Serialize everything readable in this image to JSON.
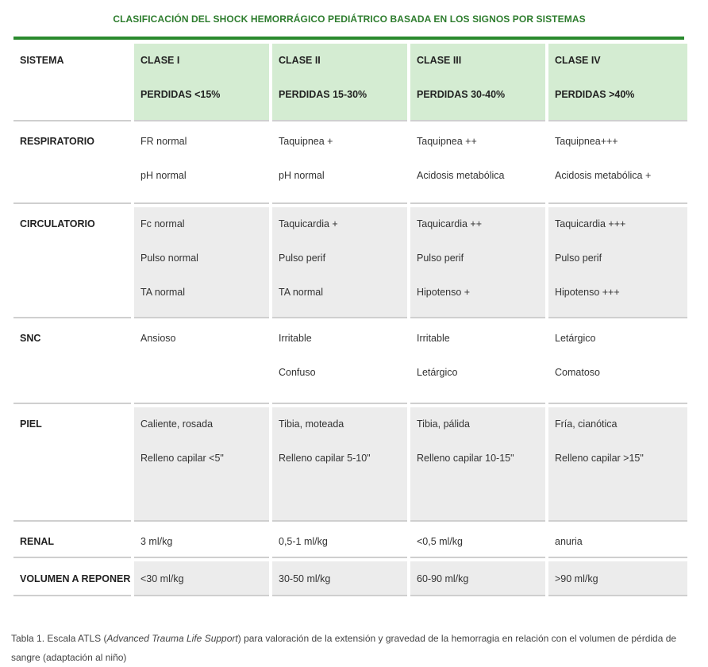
{
  "title": "CLASIFICACIÓN DEL SHOCK HEMORRÁGICO PEDIÁTRICO BASADA EN LOS SIGNOS POR SISTEMAS",
  "header": {
    "sistema": "SISTEMA",
    "classes": [
      {
        "name": "CLASE I",
        "loss": "PERDIDAS <15%"
      },
      {
        "name": "CLASE II",
        "loss": "PERDIDAS 15-30%"
      },
      {
        "name": "CLASE III",
        "loss": "PERDIDAS 30-40%"
      },
      {
        "name": "CLASE IV",
        "loss": "PERDIDAS >40%"
      }
    ]
  },
  "rows": [
    {
      "system": "RESPIRATORIO",
      "cells": [
        [
          "FR normal",
          "pH normal"
        ],
        [
          "Taquipnea +",
          "pH normal"
        ],
        [
          "Taquipnea ++",
          "Acidosis metabólica"
        ],
        [
          "Taquipnea+++",
          "Acidosis metabólica +"
        ]
      ]
    },
    {
      "system": "CIRCULATORIO",
      "cells": [
        [
          "Fc normal",
          "Pulso normal",
          "TA normal"
        ],
        [
          "Taquicardia +",
          "Pulso perif",
          "TA normal"
        ],
        [
          "Taquicardia ++",
          "Pulso perif",
          "Hipotenso +"
        ],
        [
          "Taquicardia +++",
          "Pulso perif",
          "Hipotenso +++"
        ]
      ]
    },
    {
      "system": "SNC",
      "cells": [
        [
          "Ansioso"
        ],
        [
          "Irritable",
          "Confuso"
        ],
        [
          "Irritable",
          "Letárgico"
        ],
        [
          "Letárgico",
          "Comatoso"
        ]
      ]
    },
    {
      "system": "PIEL",
      "cells": [
        [
          "Caliente, rosada",
          "Relleno capilar <5\""
        ],
        [
          "Tibia, moteada",
          "Relleno capilar 5-10\""
        ],
        [
          "Tibia, pálida",
          "Relleno capilar 10-15\""
        ],
        [
          "Fría, cianótica",
          "Relleno capilar >15\""
        ]
      ]
    },
    {
      "system": "RENAL",
      "cells": [
        [
          "3 ml/kg"
        ],
        [
          "0,5-1 ml/kg"
        ],
        [
          "<0,5 ml/kg"
        ],
        [
          "anuria"
        ]
      ]
    },
    {
      "system": "VOLUMEN A REPONER",
      "cells": [
        [
          "<30 ml/kg"
        ],
        [
          "30-50 ml/kg"
        ],
        [
          "60-90 ml/kg"
        ],
        [
          ">90 ml/kg"
        ]
      ]
    }
  ],
  "caption": {
    "prefix": "Tabla 1. Escala ATLS (",
    "italic": "Advanced Trauma Life Support",
    "suffix": ") para valoración de la extensión y gravedad de la hemorragia en relación con el volumen de pérdida de sangre (adaptación al niño)"
  }
}
